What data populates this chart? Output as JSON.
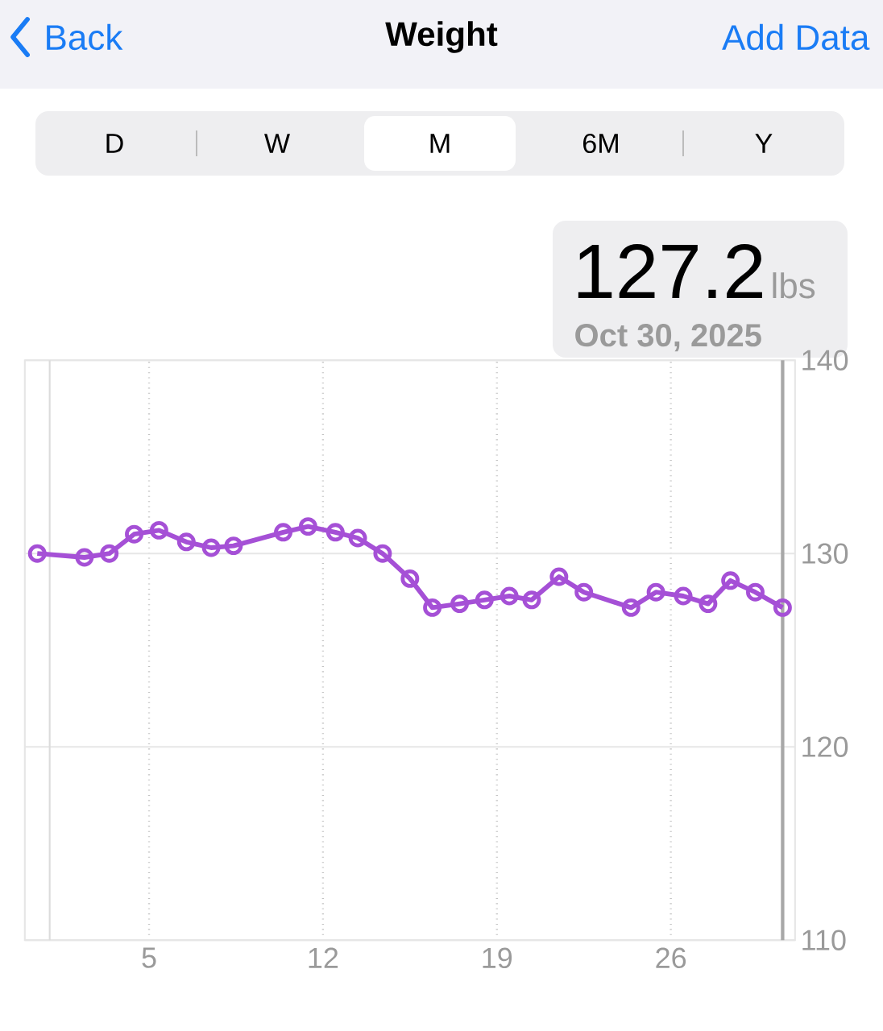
{
  "chart_data": {
    "type": "line",
    "title": "Weight",
    "x": [
      0.5,
      2.4,
      3.4,
      4.4,
      5.4,
      6.5,
      7.5,
      8.4,
      10.4,
      11.4,
      12.5,
      13.4,
      14.4,
      15.5,
      16.4,
      17.5,
      18.5,
      19.5,
      20.4,
      21.5,
      22.5,
      24.4,
      25.4,
      26.5,
      27.5,
      28.4,
      29.4,
      30.5
    ],
    "values": [
      130.0,
      129.8,
      130.0,
      131.0,
      131.2,
      130.6,
      130.3,
      130.4,
      131.1,
      131.4,
      131.1,
      130.8,
      130.0,
      128.7,
      127.2,
      127.4,
      127.6,
      127.8,
      127.6,
      128.8,
      128.0,
      127.2,
      128.0,
      127.8,
      127.4,
      128.6,
      128.0,
      127.2
    ],
    "color": "#a550d6",
    "marker": "circle",
    "line_style": "solid",
    "grid": true,
    "xlim": [
      0,
      31
    ],
    "xticks": [
      5,
      12,
      19,
      26
    ],
    "ylim": [
      110,
      140
    ],
    "yticks": [
      110,
      120,
      130,
      140
    ],
    "ref_lines": [
      {
        "axis": "x",
        "value": 1,
        "color": "#dcdcdc"
      },
      {
        "axis": "x",
        "value": 30.5,
        "color": "#a8a8a8"
      }
    ],
    "annotations": [
      "Back",
      "Add Data",
      "D",
      "W",
      "M",
      "6M",
      "Y",
      "127.2",
      "lbs",
      "Oct 30, 2025"
    ]
  }
}
